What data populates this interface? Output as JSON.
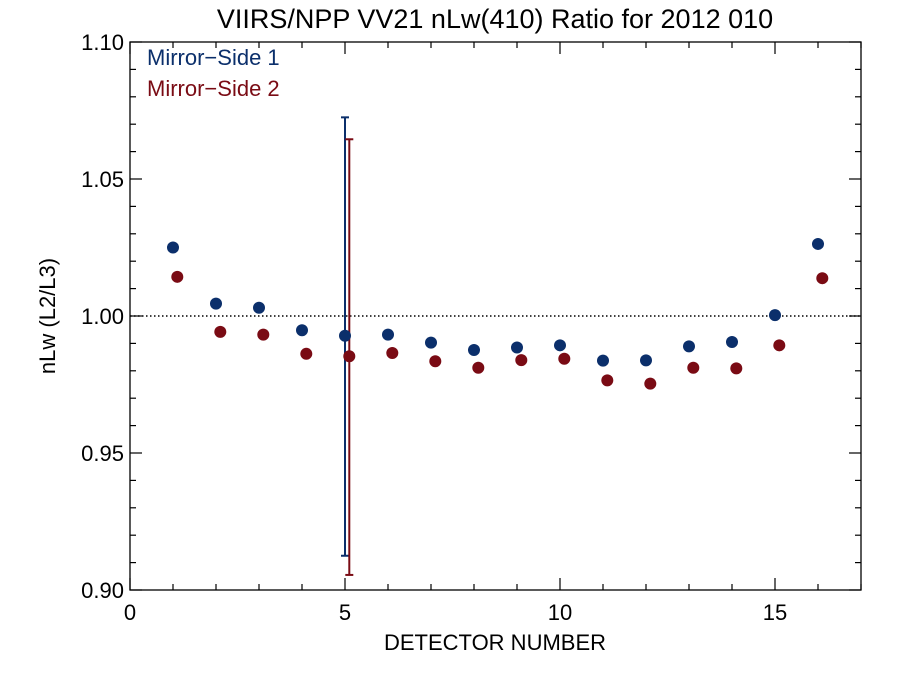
{
  "chart_data": {
    "type": "scatter",
    "title": "VIIRS/NPP VV21 nLw(410) Ratio for 2012 010",
    "xlabel": "DETECTOR NUMBER",
    "ylabel": "nLw (L2/L3)",
    "xlim": [
      0,
      17
    ],
    "ylim": [
      0.9,
      1.1
    ],
    "x_ticks": [
      0,
      5,
      10,
      15
    ],
    "x_tick_labels": [
      "0",
      "5",
      "10",
      "15"
    ],
    "y_ticks": [
      0.9,
      0.95,
      1.0,
      1.05,
      1.1
    ],
    "y_tick_labels": [
      "0.90",
      "0.95",
      "1.00",
      "1.05",
      "1.10"
    ],
    "reference_line": 1.0,
    "legend_position": "top-left",
    "series": [
      {
        "name": "Mirror−Side 1",
        "color": "#0b2f6b",
        "x": [
          1,
          2,
          3,
          4,
          5,
          6,
          7,
          8,
          9,
          10,
          11,
          12,
          13,
          14,
          15,
          16
        ],
        "values": [
          1.025,
          1.0045,
          1.003,
          0.9948,
          0.9928,
          0.9932,
          0.9903,
          0.9876,
          0.9885,
          0.9893,
          0.9837,
          0.9838,
          0.9889,
          0.9905,
          1.0003,
          1.0263
        ],
        "error_bar": {
          "x": 5,
          "low": 0.9125,
          "high": 1.0725
        }
      },
      {
        "name": "Mirror−Side 2",
        "color": "#7a0b14",
        "x": [
          1.1,
          2.1,
          3.1,
          4.1,
          5.1,
          6.1,
          7.1,
          8.1,
          9.1,
          10.1,
          11.1,
          12.1,
          13.1,
          14.1,
          15.1,
          16.1
        ],
        "values": [
          1.0143,
          0.9942,
          0.9932,
          0.9862,
          0.9853,
          0.9865,
          0.9835,
          0.9811,
          0.9839,
          0.9844,
          0.9765,
          0.9753,
          0.9811,
          0.9809,
          0.9893,
          1.0138
        ],
        "error_bar": {
          "x": 5.1,
          "low": 0.9055,
          "high": 1.0645
        }
      }
    ]
  }
}
